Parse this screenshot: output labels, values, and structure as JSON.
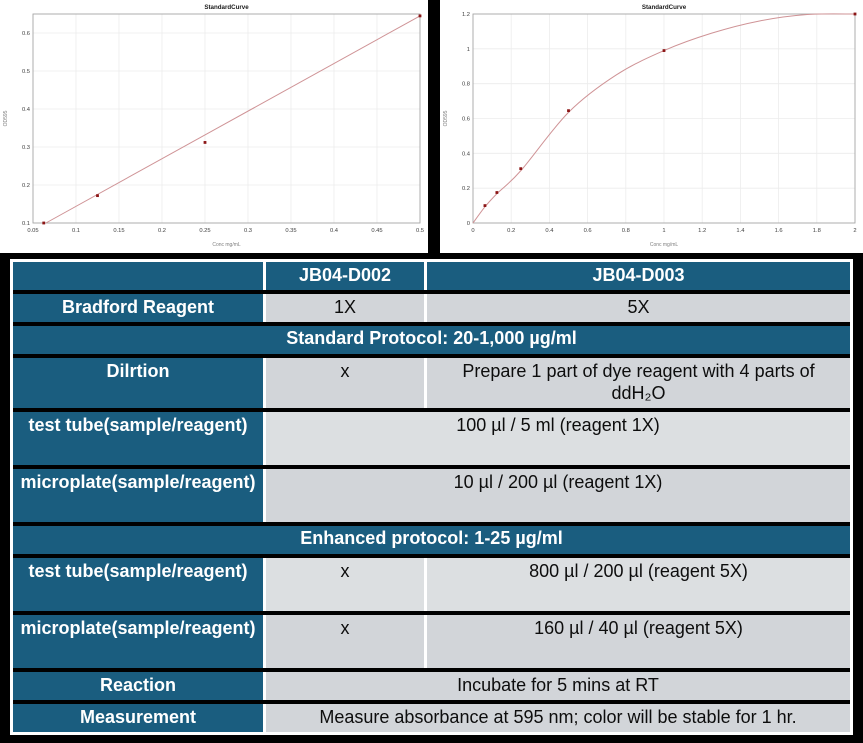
{
  "colors": {
    "canvas": "#000000",
    "header_bg": "#1a5d7f",
    "value_bg": "#d2d5d9",
    "value_bg_light": "#dcdfe1",
    "frame_white": "#ffffff",
    "point": "#8c1616",
    "fit_line": "#cf9396",
    "grid": "#ececec",
    "axis_border": "#a6a6a6",
    "tick_text": "#404040",
    "axis_label_text": "#808080",
    "title_text": "#1a1a1a"
  },
  "chart_data": [
    {
      "type": "scatter",
      "title": "StandardCurve",
      "xlabel": "Conc mg/mL",
      "ylabel": "OD595",
      "xlim": [
        0.05,
        0.5
      ],
      "ylim": [
        0.1,
        0.65
      ],
      "xticks": [
        0.05,
        0.1,
        0.15,
        0.2,
        0.25,
        0.3,
        0.35,
        0.4,
        0.45,
        0.5
      ],
      "yticks": [
        0.1,
        0.2,
        0.3,
        0.4,
        0.5,
        0.6
      ],
      "grid": true,
      "legend": "none",
      "points": [
        [
          0.0625,
          0.1
        ],
        [
          0.125,
          0.172
        ],
        [
          0.25,
          0.312
        ],
        [
          0.5,
          0.645
        ]
      ],
      "fit_curve": [
        [
          0.065,
          0.1
        ],
        [
          0.5,
          0.645
        ]
      ]
    },
    {
      "type": "scatter",
      "title": "StandardCurve",
      "xlabel": "Conc mg/mL",
      "ylabel": "OD595",
      "xlim": [
        0,
        2
      ],
      "ylim": [
        0,
        1.2
      ],
      "xticks": [
        0,
        0.2,
        0.4,
        0.6,
        0.8,
        1,
        1.2,
        1.4,
        1.6,
        1.8,
        2
      ],
      "yticks": [
        0,
        0.2,
        0.4,
        0.6,
        0.8,
        1,
        1.2
      ],
      "grid": true,
      "legend": "none",
      "points": [
        [
          0.0625,
          0.1
        ],
        [
          0.125,
          0.175
        ],
        [
          0.25,
          0.312
        ],
        [
          0.5,
          0.645
        ],
        [
          1,
          0.99
        ],
        [
          2,
          1.2
        ]
      ],
      "fit_curve": [
        [
          0,
          0
        ],
        [
          0.0625,
          0.093
        ],
        [
          0.125,
          0.168
        ],
        [
          0.25,
          0.3
        ],
        [
          0.5,
          0.635
        ],
        [
          0.75,
          0.85
        ],
        [
          1,
          0.99
        ],
        [
          1.25,
          1.09
        ],
        [
          1.5,
          1.16
        ],
        [
          1.75,
          1.197
        ],
        [
          2,
          1.2
        ]
      ]
    },
    {
      "type": "table",
      "columns": [
        "",
        "JB04-D002",
        "JB04-D003"
      ],
      "rows": [
        {
          "kind": "data",
          "height": "single",
          "shade": "dark",
          "label": "Bradford Reagent",
          "cells": [
            "1X",
            "5X"
          ]
        },
        {
          "kind": "section",
          "height": "single",
          "label": "Standard Protocol: 20-1,000 µg/ml"
        },
        {
          "kind": "data",
          "height": "med",
          "shade": "dark",
          "label": "Dilrtion",
          "cells": [
            "x",
            "Prepare 1 part of dye reagent with 4 parts of ddH₂O"
          ]
        },
        {
          "kind": "merged",
          "height": "tall",
          "shade": "light",
          "label": "test tube(sample/reagent)",
          "value": "100 µl / 5 ml (reagent 1X)"
        },
        {
          "kind": "merged",
          "height": "tall",
          "shade": "dark",
          "label": "microplate(sample/reagent)",
          "value": "10 µl / 200 µl (reagent 1X)"
        },
        {
          "kind": "section",
          "height": "single",
          "label": "Enhanced protocol: 1-25 µg/ml"
        },
        {
          "kind": "data",
          "height": "tall",
          "shade": "light",
          "label": "test tube(sample/reagent)",
          "cells": [
            "x",
            "800 µl / 200 µl (reagent 5X)"
          ]
        },
        {
          "kind": "data",
          "height": "tall",
          "shade": "dark",
          "label": "microplate(sample/reagent)",
          "cells": [
            "x",
            "160 µl / 40 µl (reagent 5X)"
          ]
        },
        {
          "kind": "merged",
          "height": "single",
          "shade": "dark",
          "label": "Reaction",
          "value": "Incubate for 5 mins at RT"
        },
        {
          "kind": "merged",
          "height": "single",
          "shade": "dark",
          "label": "Measurement",
          "value": "Measure absorbance at 595 nm; color will be stable for 1 hr."
        }
      ]
    }
  ]
}
